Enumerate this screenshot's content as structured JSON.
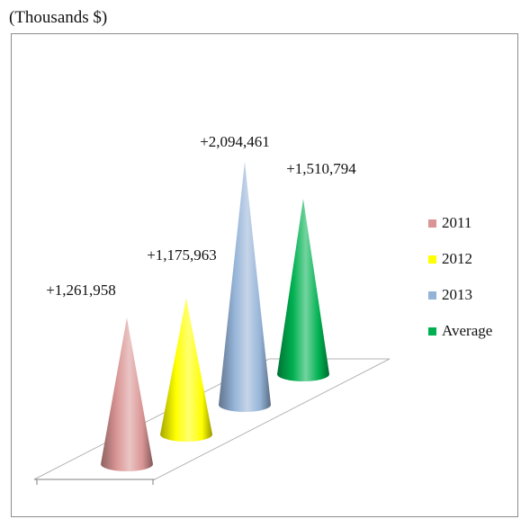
{
  "unit_label": "(Thousands $)",
  "chart_data": {
    "type": "bar",
    "shape": "3d-cone",
    "categories": [
      "2011",
      "2012",
      "2013",
      "Average"
    ],
    "series": [
      {
        "name": "2011",
        "value": 1261958,
        "label": "+1,261,958",
        "color": "#d99594"
      },
      {
        "name": "2012",
        "value": 1175963,
        "label": "+1,175,963",
        "color": "#ffff00"
      },
      {
        "name": "2013",
        "value": 2094461,
        "label": "+2,094,461",
        "color": "#95b3d7"
      },
      {
        "name": "Average",
        "value": 1510794,
        "label": "+1,510,794",
        "color": "#00b050"
      }
    ],
    "legend_position": "right",
    "grid": false
  }
}
